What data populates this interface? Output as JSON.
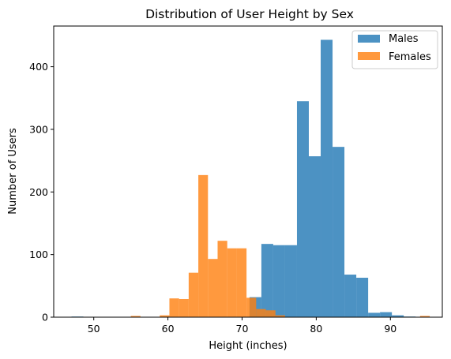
{
  "chart_data": {
    "type": "bar",
    "title": "Distribution of User Height by Sex",
    "xlabel": "Height (inches)",
    "ylabel": "Number of Users",
    "xlim": [
      44.6,
      97.0
    ],
    "ylim": [
      0,
      465
    ],
    "xticks": [
      50,
      60,
      70,
      80,
      90
    ],
    "yticks": [
      0,
      100,
      200,
      300,
      400
    ],
    "grid": false,
    "legend_position": "top-right",
    "series": [
      {
        "name": "Males",
        "color": "#1f77b4",
        "opacity": 0.8,
        "bin_start": 47.0,
        "bin_width": 1.6,
        "counts": [
          1,
          0,
          0,
          0,
          0,
          0,
          0,
          0,
          0,
          0,
          0,
          0,
          0,
          0,
          0,
          32,
          117,
          115,
          115,
          345,
          257,
          443,
          272,
          68,
          63,
          7,
          8,
          3,
          1,
          0,
          0,
          0,
          0,
          0,
          0,
          0,
          0,
          0,
          0,
          0,
          1
        ]
      },
      {
        "name": "Females",
        "color": "#ff7f0e",
        "opacity": 0.8,
        "bin_start": 55.0,
        "bin_width": 1.3,
        "counts": [
          2,
          0,
          0,
          3,
          30,
          29,
          71,
          227,
          93,
          122,
          110,
          110,
          31,
          13,
          11,
          3,
          0,
          0,
          0,
          0,
          0,
          0,
          0,
          0,
          0,
          0,
          0,
          0,
          0,
          0,
          2
        ]
      }
    ]
  }
}
